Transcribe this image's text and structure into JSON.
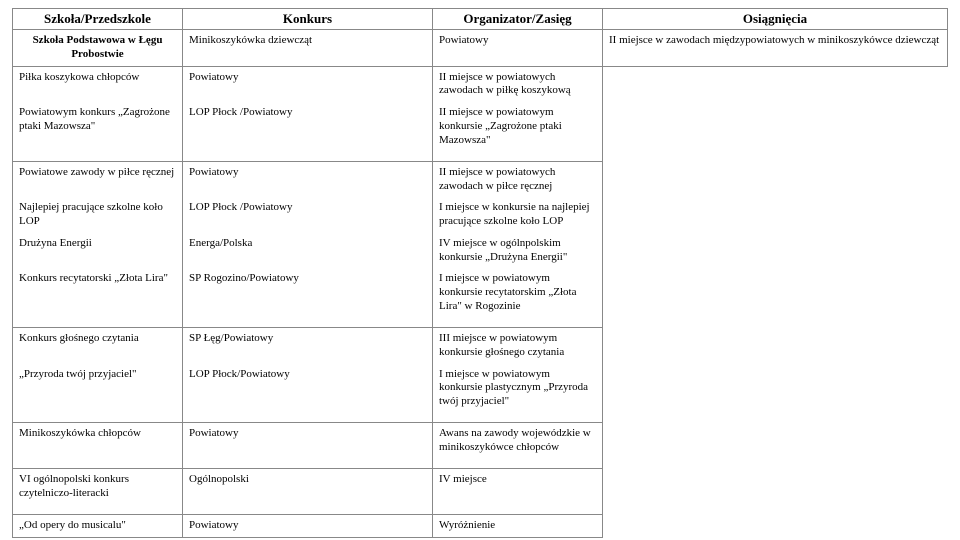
{
  "headers": {
    "school": "Szkoła/Przedszkole",
    "contest": "Konkurs",
    "organizer": "Organizator/Zasięg",
    "achievement": "Osiągnięcia"
  },
  "school_name": "Szkoła Podstawowa w Łęgu Probostwie",
  "rows": [
    {
      "contest": "Minikoszykówka dziewcząt",
      "organizer": "Powiatowy",
      "achievement": "II miejsce w zawodach międzypowiatowych w minikoszykówce dziewcząt"
    },
    {
      "contest": "Piłka koszykowa chłopców",
      "organizer": "Powiatowy",
      "achievement": "II miejsce w powiatowych zawodach w piłkę koszykową"
    },
    {
      "contest": "Powiatowym konkurs „Zagrożone ptaki Mazowsza\"",
      "organizer": "LOP Płock /Powiatowy",
      "achievement": "II miejsce w powiatowym konkursie „Zagrożone ptaki Mazowsza\""
    },
    {
      "contest": "Powiatowe zawody w piłce ręcznej",
      "organizer": "Powiatowy",
      "achievement": "II miejsce w powiatowych zawodach w piłce ręcznej"
    },
    {
      "contest": "Najlepiej pracujące szkolne koło LOP",
      "organizer": "LOP Płock /Powiatowy",
      "achievement": "I miejsce w konkursie na najlepiej pracujące szkolne koło LOP"
    },
    {
      "contest": "Drużyna Energii",
      "organizer": "Energa/Polska",
      "achievement": "IV miejsce w ogólnpolskim konkursie „Drużyna Energii\""
    },
    {
      "contest": "Konkurs recytatorski „Złota Lira\"",
      "organizer": "SP Rogozino/Powiatowy",
      "achievement": "I miejsce w powiatowym konkursie recytatorskim „Złota Lira\" w Rogozinie"
    },
    {
      "contest": "Konkurs głośnego czytania",
      "organizer": "SP Łęg/Powiatowy",
      "achievement": "III miejsce w powiatowym konkursie głośnego czytania"
    },
    {
      "contest": "„Przyroda twój przyjaciel\"",
      "organizer": "LOP Płock/Powiatowy",
      "achievement": "I miejsce w powiatowym konkursie plastycznym „Przyroda twój przyjaciel\""
    },
    {
      "contest": "Minikoszykówka chłopców",
      "organizer": " Powiatowy",
      "achievement": "Awans na zawody wojewódzkie w minikoszykówce chłopców"
    },
    {
      "contest": "VI ogólnopolski konkurs czytelniczo-literacki",
      "organizer": "Ogólnopolski",
      "achievement": "IV miejsce"
    },
    {
      "contest": "„Od opery do musicalu\"",
      "organizer": "Powiatowy",
      "achievement": "Wyróżnienie"
    }
  ],
  "groups": [
    [
      0,
      0
    ],
    [
      1,
      2
    ],
    [
      3,
      6
    ],
    [
      7,
      8
    ],
    [
      9,
      9
    ],
    [
      10,
      10
    ],
    [
      11,
      11
    ]
  ]
}
